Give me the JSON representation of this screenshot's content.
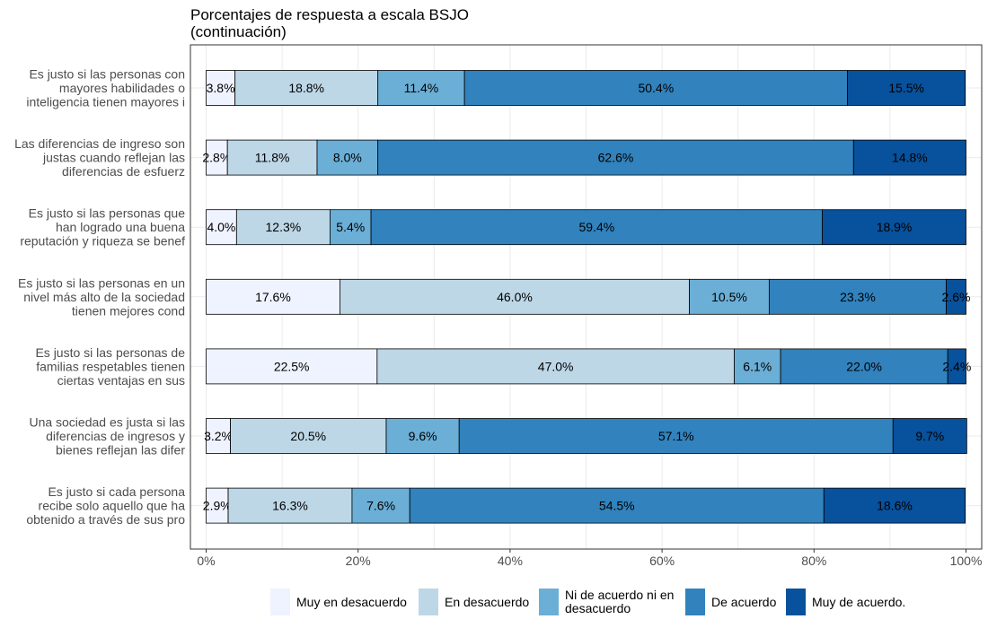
{
  "chart_data": {
    "type": "bar",
    "orientation": "horizontal",
    "stacked": true,
    "title_lines": [
      "Porcentajes de respuesta a escala BSJO",
      "(continuación)"
    ],
    "categories": [
      [
        "Es justo si las personas con",
        "mayores habilidades o",
        "inteligencia tienen mayores i"
      ],
      [
        "Las diferencias de ingreso son",
        "justas cuando reflejan las",
        "diferencias de esfuerz"
      ],
      [
        "Es justo si las personas que",
        "han logrado una buena",
        "reputación y riqueza se benef"
      ],
      [
        "Es justo si las personas en un",
        "nivel más alto de la sociedad",
        "tienen mejores cond"
      ],
      [
        "Es justo si las personas de",
        "familias respetables tienen",
        "ciertas ventajas en sus"
      ],
      [
        "Una sociedad es justa si las",
        "diferencias de ingresos y",
        "bienes reflejan las difer"
      ],
      [
        "Es justo si cada persona",
        "recibe solo aquello que ha",
        "obtenido a través de sus pro"
      ]
    ],
    "series": [
      {
        "name": "Muy en desacuerdo",
        "color": "#eff3ff",
        "values": [
          3.8,
          2.8,
          4.0,
          17.6,
          22.5,
          3.2,
          2.9
        ],
        "labels": [
          "3.8%",
          "2.8%",
          "4.0%",
          "17.6%",
          "22.5%",
          "3.2%",
          "2.9%"
        ]
      },
      {
        "name": "En desacuerdo",
        "color": "#bdd7e7",
        "values": [
          18.8,
          11.8,
          12.3,
          46.0,
          47.0,
          20.5,
          16.3
        ],
        "labels": [
          "18.8%",
          "11.8%",
          "12.3%",
          "46.0%",
          "47.0%",
          "20.5%",
          "16.3%"
        ]
      },
      {
        "name": "Ni de acuerdo ni en desacuerdo",
        "legend_lines": [
          "Ni de acuerdo ni en",
          "desacuerdo"
        ],
        "color": "#6baed6",
        "values": [
          11.4,
          8.0,
          5.4,
          10.5,
          6.1,
          9.6,
          7.6
        ],
        "labels": [
          "11.4%",
          "8.0%",
          "5.4%",
          "10.5%",
          "6.1%",
          "9.6%",
          "7.6%"
        ]
      },
      {
        "name": "De acuerdo",
        "color": "#3182bd",
        "values": [
          50.4,
          62.6,
          59.4,
          23.3,
          22.0,
          57.1,
          54.5
        ],
        "labels": [
          "50.4%",
          "62.6%",
          "59.4%",
          "23.3%",
          "22.0%",
          "57.1%",
          "54.5%"
        ]
      },
      {
        "name": "Muy de acuerdo.",
        "color": "#08519c",
        "values": [
          15.5,
          14.8,
          18.9,
          2.6,
          2.4,
          9.7,
          18.6
        ],
        "labels": [
          "15.5%",
          "14.8%",
          "18.9%",
          "2.6%",
          "2.4%",
          "9.7%",
          "18.6%"
        ]
      }
    ],
    "x_ticks": [
      "0%",
      "20%",
      "40%",
      "60%",
      "80%",
      "100%"
    ],
    "xlim": [
      0,
      100
    ],
    "grid": true,
    "legend": "bottom"
  }
}
